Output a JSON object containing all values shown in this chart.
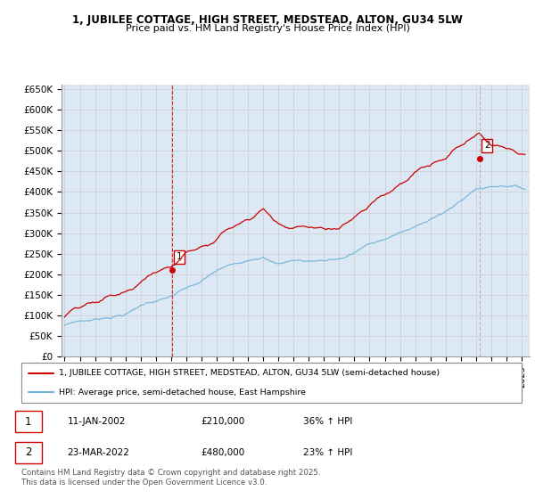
{
  "title_line1": "1, JUBILEE COTTAGE, HIGH STREET, MEDSTEAD, ALTON, GU34 5LW",
  "title_line2": "Price paid vs. HM Land Registry's House Price Index (HPI)",
  "ylim": [
    0,
    660000
  ],
  "yticks": [
    0,
    50000,
    100000,
    150000,
    200000,
    250000,
    300000,
    350000,
    400000,
    450000,
    500000,
    550000,
    600000,
    650000
  ],
  "ytick_labels": [
    "£0",
    "£50K",
    "£100K",
    "£150K",
    "£200K",
    "£250K",
    "£300K",
    "£350K",
    "£400K",
    "£450K",
    "£500K",
    "£550K",
    "£600K",
    "£650K"
  ],
  "sale1_date": 2002.04,
  "sale1_price": 210000,
  "sale1_label": "1",
  "sale2_date": 2022.22,
  "sale2_price": 480000,
  "sale2_label": "2",
  "hpi_color": "#6baed6",
  "price_color": "#cc0000",
  "vline1_color": "#cc0000",
  "vline1_style": "--",
  "vline2_color": "#aaaaaa",
  "vline2_style": "--",
  "grid_color": "#cccccc",
  "chart_bg": "#dce9f5",
  "fig_bg": "#ffffff",
  "legend_label1": "1, JUBILEE COTTAGE, HIGH STREET, MEDSTEAD, ALTON, GU34 5LW (semi-detached house)",
  "legend_label2": "HPI: Average price, semi-detached house, East Hampshire",
  "table_row1": [
    "1",
    "11-JAN-2002",
    "£210,000",
    "36% ↑ HPI"
  ],
  "table_row2": [
    "2",
    "23-MAR-2022",
    "£480,000",
    "23% ↑ HPI"
  ],
  "footnote": "Contains HM Land Registry data © Crown copyright and database right 2025.\nThis data is licensed under the Open Government Licence v3.0.",
  "xmin": 1994.8,
  "xmax": 2025.5,
  "n_points": 360
}
